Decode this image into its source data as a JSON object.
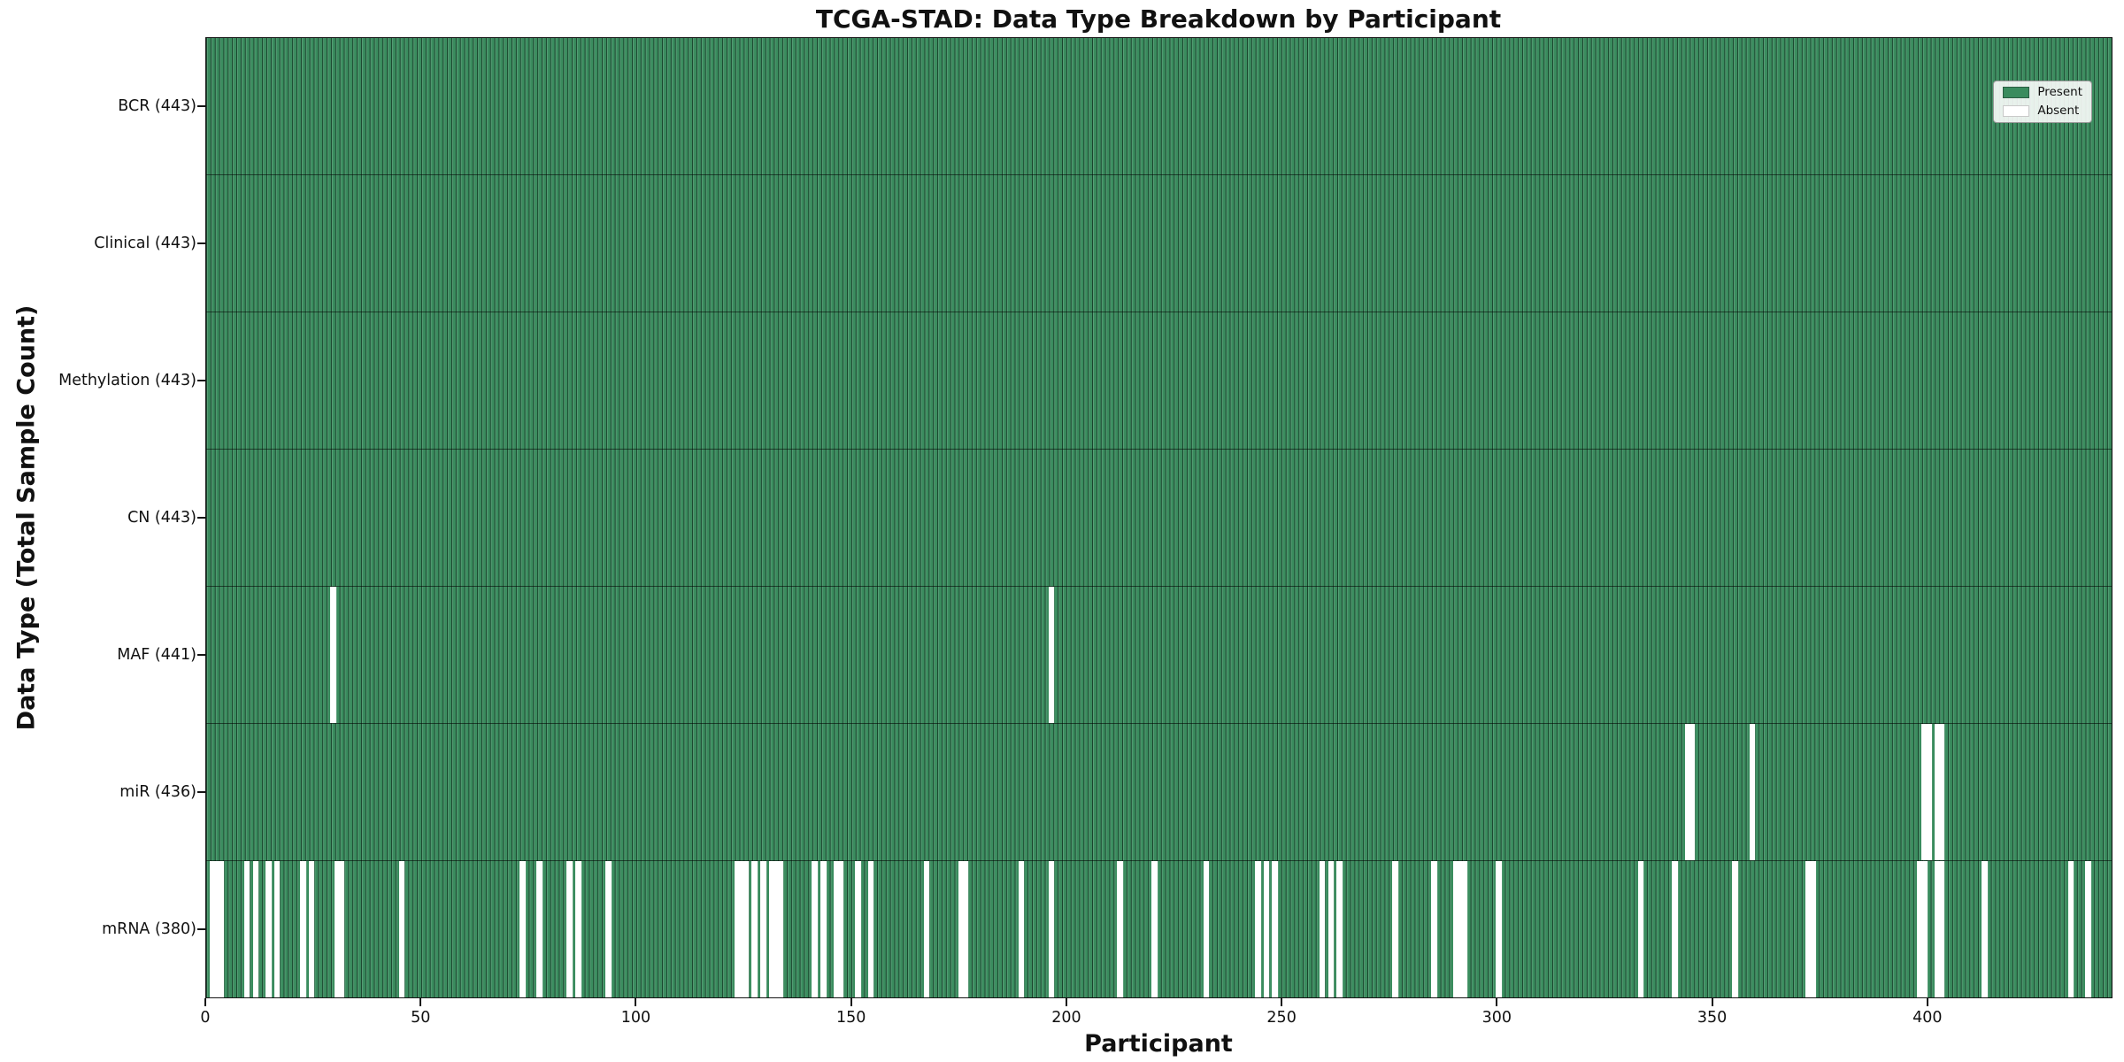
{
  "chart_data": {
    "type": "heatmap",
    "title": "TCGA-STAD: Data Type Breakdown by Participant",
    "xlabel": "Participant",
    "ylabel": "Data Type (Total Sample Count)",
    "legend": {
      "present": "Present",
      "absent": "Absent"
    },
    "legend_position": "upper right",
    "colors": {
      "present": "#3a8c5e",
      "absent": "#ffffff",
      "bar_edge": "#12301f",
      "spine": "#151515"
    },
    "n_participants": 443,
    "x_range": [
      0,
      443
    ],
    "x_ticks": [
      0,
      50,
      100,
      150,
      200,
      250,
      300,
      350,
      400
    ],
    "grid": false,
    "rows": [
      {
        "data_type": "BCR",
        "label": "BCR (443)",
        "present_count": 443,
        "absent_participants": []
      },
      {
        "data_type": "Clinical",
        "label": "Clinical (443)",
        "present_count": 443,
        "absent_participants": []
      },
      {
        "data_type": "Methylation",
        "label": "Methylation (443)",
        "present_count": 443,
        "absent_participants": []
      },
      {
        "data_type": "CN",
        "label": "CN (443)",
        "present_count": 443,
        "absent_participants": []
      },
      {
        "data_type": "MAF",
        "label": "MAF (441)",
        "present_count": 441,
        "absent_participants": [
          29,
          196
        ]
      },
      {
        "data_type": "miR",
        "label": "miR (436)",
        "present_count": 436,
        "absent_participants": [
          344,
          345,
          359,
          399,
          400,
          402,
          403
        ]
      },
      {
        "data_type": "mRNA",
        "label": "mRNA (380)",
        "present_count": 380,
        "absent_participants": [
          1,
          2,
          3,
          9,
          11,
          14,
          16,
          22,
          24,
          30,
          31,
          45,
          73,
          77,
          84,
          86,
          93,
          123,
          124,
          125,
          127,
          129,
          131,
          132,
          133,
          141,
          143,
          146,
          147,
          151,
          154,
          167,
          175,
          176,
          189,
          196,
          212,
          220,
          232,
          244,
          246,
          248,
          259,
          261,
          263,
          276,
          285,
          290,
          291,
          292,
          300,
          333,
          341,
          355,
          372,
          373,
          398,
          399,
          402,
          403,
          413,
          433,
          437
        ]
      }
    ]
  }
}
